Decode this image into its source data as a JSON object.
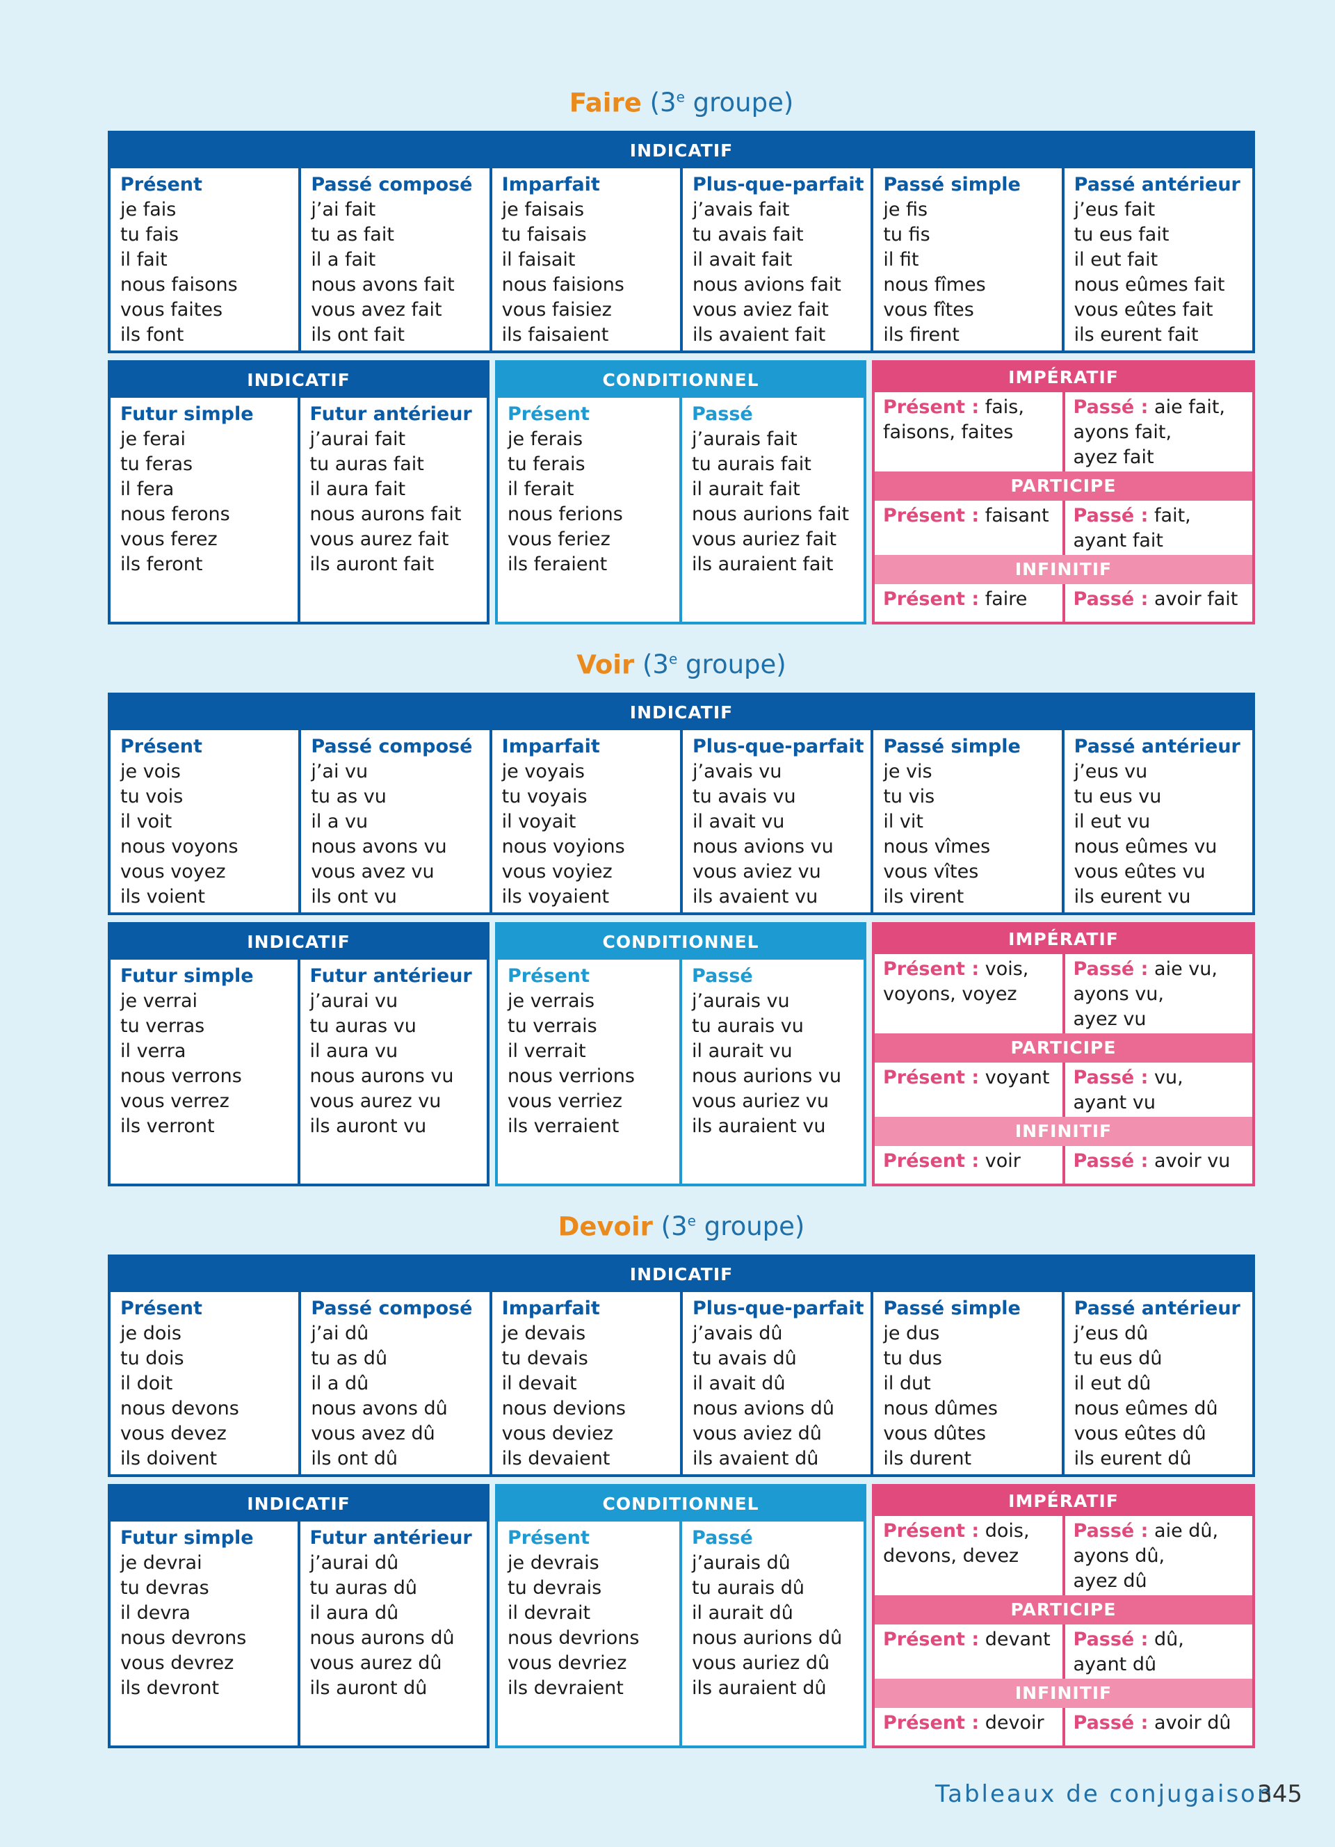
{
  "verbs": [
    {
      "name": "Faire",
      "group": "(3",
      "group_sup": "e",
      "group_rest": " groupe)",
      "indicatif_header": "INDICATIF",
      "tenses1": [
        {
          "title": "Présent",
          "forms": [
            "je fais",
            "tu fais",
            "il fait",
            "nous faisons",
            "vous faites",
            "ils font"
          ]
        },
        {
          "title": "Passé composé",
          "forms": [
            "j’ai fait",
            "tu as fait",
            "il a fait",
            "nous avons fait",
            "vous avez fait",
            "ils ont fait"
          ]
        },
        {
          "title": "Imparfait",
          "forms": [
            "je faisais",
            "tu faisais",
            "il faisait",
            "nous faisions",
            "vous faisiez",
            "ils faisaient"
          ]
        },
        {
          "title": "Plus-que-parfait",
          "forms": [
            "j’avais fait",
            "tu avais fait",
            "il avait fait",
            "nous avions fait",
            "vous aviez fait",
            "ils avaient fait"
          ]
        },
        {
          "title": "Passé simple",
          "forms": [
            "je fis",
            "tu fis",
            "il fit",
            "nous fîmes",
            "vous fîtes",
            "ils firent"
          ]
        },
        {
          "title": "Passé antérieur",
          "forms": [
            "j’eus fait",
            "tu eus fait",
            "il eut fait",
            "nous eûmes fait",
            "vous eûtes fait",
            "ils eurent fait"
          ]
        }
      ],
      "indicatif2_header": "INDICATIF",
      "tenses2": [
        {
          "title": "Futur simple",
          "forms": [
            "je ferai",
            "tu feras",
            "il fera",
            "nous ferons",
            "vous ferez",
            "ils feront"
          ]
        },
        {
          "title": "Futur antérieur",
          "forms": [
            "j’aurai fait",
            "tu auras fait",
            "il aura fait",
            "nous aurons fait",
            "vous aurez fait",
            "ils auront fait"
          ]
        }
      ],
      "conditionnel_header": "CONDITIONNEL",
      "cond": [
        {
          "title": "Présent",
          "forms": [
            "je ferais",
            "tu ferais",
            "il ferait",
            "nous ferions",
            "vous feriez",
            "ils feraient"
          ]
        },
        {
          "title": "Passé",
          "forms": [
            "j’aurais fait",
            "tu aurais fait",
            "il aurait fait",
            "nous aurions fait",
            "vous auriez fait",
            "ils auraient fait"
          ]
        }
      ],
      "imperatif_header": "IMPÉRATIF",
      "imp_present_label": "Présent :",
      "imp_present_lines": [
        "fais,",
        "faisons, faites"
      ],
      "imp_passe_label": "Passé :",
      "imp_passe_lines": [
        "aie fait,",
        "ayons fait,",
        "ayez fait"
      ],
      "participe_header": "PARTICIPE",
      "part_present_label": "Présent :",
      "part_present": "faisant",
      "part_passe_label": "Passé :",
      "part_passe_lines": [
        "fait,",
        "ayant fait"
      ],
      "infinitif_header": "INFINITIF",
      "inf_present_label": "Présent :",
      "inf_present": "faire",
      "inf_passe_label": "Passé :",
      "inf_passe": "avoir fait"
    },
    {
      "name": "Voir",
      "group": "(3",
      "group_sup": "e",
      "group_rest": " groupe)",
      "indicatif_header": "INDICATIF",
      "tenses1": [
        {
          "title": "Présent",
          "forms": [
            "je vois",
            "tu vois",
            "il voit",
            "nous voyons",
            "vous voyez",
            "ils voient"
          ]
        },
        {
          "title": "Passé composé",
          "forms": [
            "j’ai vu",
            "tu as vu",
            "il a vu",
            "nous avons vu",
            "vous avez vu",
            "ils ont vu"
          ]
        },
        {
          "title": "Imparfait",
          "forms": [
            "je voyais",
            "tu voyais",
            "il voyait",
            "nous voyions",
            "vous voyiez",
            "ils voyaient"
          ]
        },
        {
          "title": "Plus-que-parfait",
          "forms": [
            "j’avais vu",
            "tu avais vu",
            "il avait vu",
            "nous avions vu",
            "vous aviez vu",
            "ils avaient vu"
          ]
        },
        {
          "title": "Passé simple",
          "forms": [
            "je vis",
            "tu vis",
            "il vit",
            "nous vîmes",
            "vous vîtes",
            "ils virent"
          ]
        },
        {
          "title": "Passé antérieur",
          "forms": [
            "j’eus vu",
            "tu eus vu",
            "il eut vu",
            "nous eûmes vu",
            "vous eûtes vu",
            "ils eurent vu"
          ]
        }
      ],
      "indicatif2_header": "INDICATIF",
      "tenses2": [
        {
          "title": "Futur simple",
          "forms": [
            "je verrai",
            "tu verras",
            "il verra",
            "nous verrons",
            "vous verrez",
            "ils verront"
          ]
        },
        {
          "title": "Futur antérieur",
          "forms": [
            "j’aurai vu",
            "tu auras vu",
            "il aura vu",
            "nous aurons vu",
            "vous aurez vu",
            "ils auront vu"
          ]
        }
      ],
      "conditionnel_header": "CONDITIONNEL",
      "cond": [
        {
          "title": "Présent",
          "forms": [
            "je verrais",
            "tu verrais",
            "il verrait",
            "nous verrions",
            "vous verriez",
            "ils verraient"
          ]
        },
        {
          "title": "Passé",
          "forms": [
            "j’aurais vu",
            "tu aurais vu",
            "il aurait vu",
            "nous aurions vu",
            "vous auriez vu",
            "ils auraient vu"
          ]
        }
      ],
      "imperatif_header": "IMPÉRATIF",
      "imp_present_label": "Présent :",
      "imp_present_lines": [
        "vois,",
        "voyons, voyez"
      ],
      "imp_passe_label": "Passé :",
      "imp_passe_lines": [
        "aie vu,",
        "ayons vu,",
        "ayez vu"
      ],
      "participe_header": "PARTICIPE",
      "part_present_label": "Présent :",
      "part_present": "voyant",
      "part_passe_label": "Passé :",
      "part_passe_lines": [
        "vu,",
        "ayant vu"
      ],
      "infinitif_header": "INFINITIF",
      "inf_present_label": "Présent :",
      "inf_present": "voir",
      "inf_passe_label": "Passé :",
      "inf_passe": "avoir vu"
    },
    {
      "name": "Devoir",
      "group": "(3",
      "group_sup": "e",
      "group_rest": " groupe)",
      "indicatif_header": "INDICATIF",
      "tenses1": [
        {
          "title": "Présent",
          "forms": [
            "je dois",
            "tu dois",
            "il doit",
            "nous devons",
            "vous devez",
            "ils doivent"
          ]
        },
        {
          "title": "Passé composé",
          "forms": [
            "j’ai dû",
            "tu as dû",
            "il a dû",
            "nous avons dû",
            "vous avez dû",
            "ils ont dû"
          ]
        },
        {
          "title": "Imparfait",
          "forms": [
            "je devais",
            "tu devais",
            "il devait",
            "nous devions",
            "vous deviez",
            "ils devaient"
          ]
        },
        {
          "title": "Plus-que-parfait",
          "forms": [
            "j’avais dû",
            "tu avais dû",
            "il avait dû",
            "nous avions dû",
            "vous aviez dû",
            "ils avaient dû"
          ]
        },
        {
          "title": "Passé simple",
          "forms": [
            "je dus",
            "tu dus",
            "il dut",
            "nous dûmes",
            "vous dûtes",
            "ils durent"
          ]
        },
        {
          "title": "Passé antérieur",
          "forms": [
            "j’eus dû",
            "tu eus dû",
            "il eut dû",
            "nous eûmes dû",
            "vous eûtes dû",
            "ils eurent dû"
          ]
        }
      ],
      "indicatif2_header": "INDICATIF",
      "tenses2": [
        {
          "title": "Futur simple",
          "forms": [
            "je devrai",
            "tu devras",
            "il devra",
            "nous devrons",
            "vous devrez",
            "ils devront"
          ]
        },
        {
          "title": "Futur antérieur",
          "forms": [
            "j’aurai dû",
            "tu auras dû",
            "il aura dû",
            "nous aurons dû",
            "vous aurez dû",
            "ils auront dû"
          ]
        }
      ],
      "conditionnel_header": "CONDITIONNEL",
      "cond": [
        {
          "title": "Présent",
          "forms": [
            "je devrais",
            "tu devrais",
            "il devrait",
            "nous devrions",
            "vous devriez",
            "ils devraient"
          ]
        },
        {
          "title": "Passé",
          "forms": [
            "j’aurais dû",
            "tu aurais dû",
            "il aurait dû",
            "nous aurions dû",
            "vous auriez dû",
            "ils auraient dû"
          ]
        }
      ],
      "imperatif_header": "IMPÉRATIF",
      "imp_present_label": "Présent :",
      "imp_present_lines": [
        "dois,",
        "devons, devez"
      ],
      "imp_passe_label": "Passé :",
      "imp_passe_lines": [
        "aie dû,",
        "ayons dû,",
        "ayez dû"
      ],
      "participe_header": "PARTICIPE",
      "part_present_label": "Présent :",
      "part_present": "devant",
      "part_passe_label": "Passé :",
      "part_passe_lines": [
        "dû,",
        "ayant dû"
      ],
      "infinitif_header": "INFINITIF",
      "inf_present_label": "Présent :",
      "inf_present": "devoir",
      "inf_passe_label": "Passé :",
      "inf_passe": "avoir dû"
    }
  ],
  "footer": {
    "title": "Tableaux de conjugaison",
    "page_number": "345"
  },
  "colors": {
    "indicatif": "#0a5ba6",
    "conditionnel": "#1e9ad2",
    "imperatif": "#e04a7c",
    "verb_name": "#ea8a1d",
    "background": "#def0f8"
  }
}
